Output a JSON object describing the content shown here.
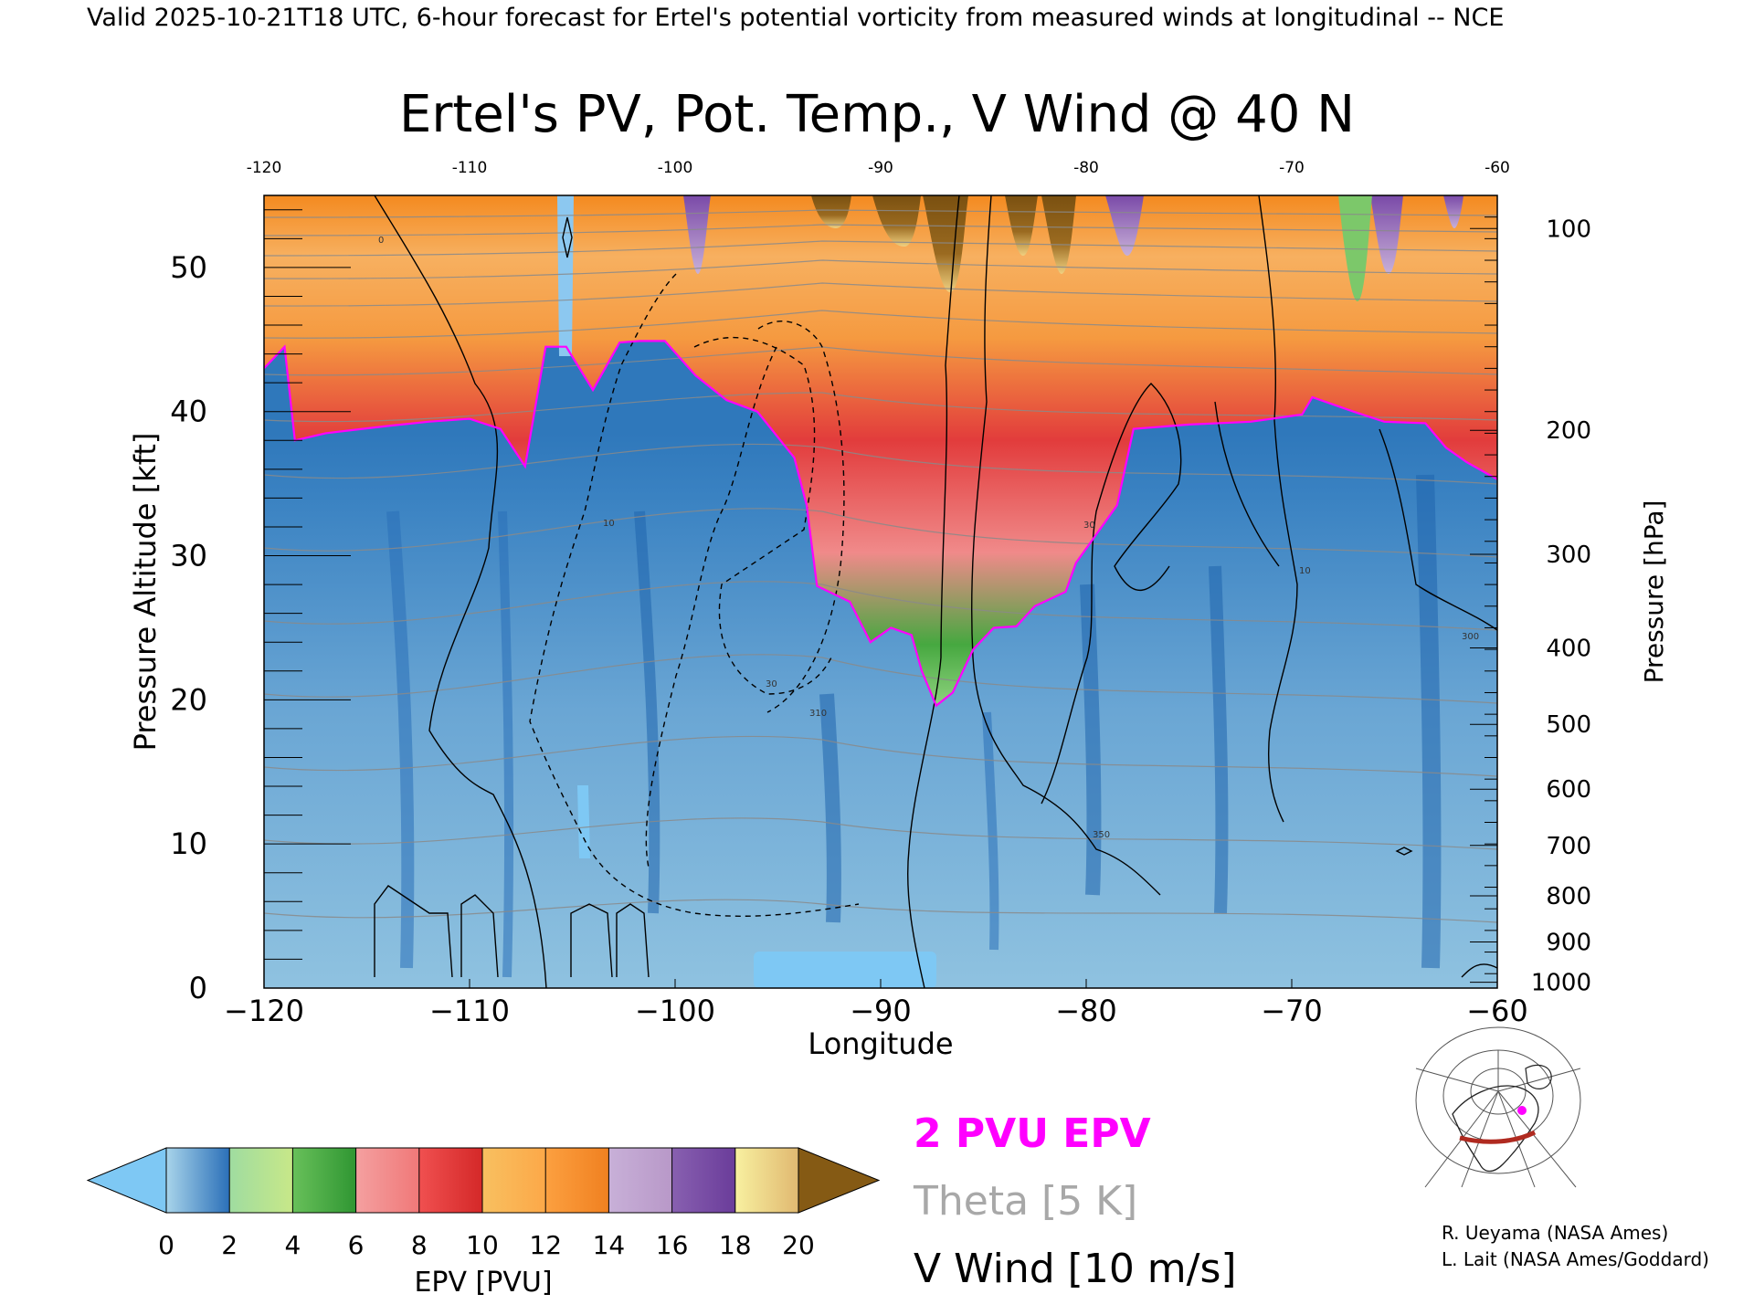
{
  "header": {
    "valid_line": "Valid 2025-10-21T18 UTC, 6-hour forecast for Ertel's potential vorticity from measured winds at longitudinal -- NCE"
  },
  "chart_data": {
    "type": "heatmap",
    "title": "Ertel's PV, Pot. Temp., V Wind @ 40 N",
    "xlabel": "Longitude",
    "ylabel_left": "Pressure Altitude [kft]",
    "ylabel_right": "Pressure [hPa]",
    "xlim": [
      -120,
      -60
    ],
    "ylim_kft": [
      0,
      55
    ],
    "x_ticks_bottom": [
      "−120",
      "−110",
      "−100",
      "−90",
      "−80",
      "−70",
      "−60"
    ],
    "x_ticks_top": [
      "-120",
      "-110",
      "-100",
      "-90",
      "-80",
      "-70",
      "-60"
    ],
    "y_ticks_left": [
      {
        "value": 0,
        "label": "0"
      },
      {
        "value": 10,
        "label": "10"
      },
      {
        "value": 20,
        "label": "20"
      },
      {
        "value": 30,
        "label": "30"
      },
      {
        "value": 40,
        "label": "40"
      },
      {
        "value": 50,
        "label": "50"
      }
    ],
    "y_ticks_right": [
      {
        "kft": 52.7,
        "label": "100"
      },
      {
        "kft": 38.7,
        "label": "200"
      },
      {
        "kft": 30.1,
        "label": "300"
      },
      {
        "kft": 23.6,
        "label": "400"
      },
      {
        "kft": 18.3,
        "label": "500"
      },
      {
        "kft": 13.8,
        "label": "600"
      },
      {
        "kft": 9.9,
        "label": "700"
      },
      {
        "kft": 6.4,
        "label": "800"
      },
      {
        "kft": 3.2,
        "label": "900"
      },
      {
        "kft": 0.4,
        "label": "1000"
      }
    ],
    "pv_2pvu_contour": [
      [
        -120,
        43
      ],
      [
        -119,
        44.5
      ],
      [
        -118.5,
        38
      ],
      [
        -117,
        38.5
      ],
      [
        -114,
        39
      ],
      [
        -112,
        39.3
      ],
      [
        -110,
        39.5
      ],
      [
        -108.5,
        38.8
      ],
      [
        -107.3,
        36.2
      ],
      [
        -106.3,
        44.5
      ],
      [
        -105.3,
        44.5
      ],
      [
        -104,
        41.5
      ],
      [
        -102.7,
        44.8
      ],
      [
        -101.7,
        44.9
      ],
      [
        -100.5,
        44.9
      ],
      [
        -99,
        42.5
      ],
      [
        -97.5,
        40.8
      ],
      [
        -96,
        40
      ],
      [
        -94.2,
        36.8
      ],
      [
        -93.6,
        33.5
      ],
      [
        -93.1,
        27.9
      ],
      [
        -91.5,
        26.8
      ],
      [
        -90.5,
        24
      ],
      [
        -89.5,
        25
      ],
      [
        -88.5,
        24.5
      ],
      [
        -88,
        22
      ],
      [
        -87.3,
        19.6
      ],
      [
        -86.5,
        20.5
      ],
      [
        -85.5,
        23.5
      ],
      [
        -84.5,
        25
      ],
      [
        -83.4,
        25.1
      ],
      [
        -82.5,
        26.5
      ],
      [
        -81,
        27.5
      ],
      [
        -80.5,
        29.5
      ],
      [
        -79.5,
        31.5
      ],
      [
        -78.5,
        33.5
      ],
      [
        -77.7,
        38.8
      ],
      [
        -75,
        39.1
      ],
      [
        -72,
        39.3
      ],
      [
        -69.5,
        39.8
      ],
      [
        -69,
        41
      ],
      [
        -67,
        40
      ],
      [
        -65.5,
        39.3
      ],
      [
        -63.5,
        39.2
      ],
      [
        -62.5,
        37.5
      ],
      [
        -61.5,
        36.5
      ],
      [
        -60,
        35.3
      ]
    ],
    "pv_2pvu_label": "2 PVU EPV",
    "theta_label": "Theta [5 K]",
    "vwind_label": "V Wind [10 m/s]",
    "colorbar": {
      "label": "EPV [PVU]",
      "ticks": [
        "0",
        "2",
        "4",
        "6",
        "8",
        "10",
        "12",
        "14",
        "16",
        "18",
        "20"
      ],
      "under_color": "#7ec8f4",
      "over_color": "#855a14",
      "bands": [
        [
          "#a8d4ea",
          "#2a6fb8"
        ],
        [
          "#9fdca0",
          "#c8e888"
        ],
        [
          "#68c05a",
          "#2f9632"
        ],
        [
          "#f4a0a0",
          "#f07878"
        ],
        [
          "#f05050",
          "#d42828"
        ],
        [
          "#f8c060",
          "#fca848"
        ],
        [
          "#fca040",
          "#f08020"
        ],
        [
          "#c8b0d8",
          "#b898c8"
        ],
        [
          "#8860b0",
          "#6a3c9a"
        ],
        [
          "#f8f0a0",
          "#e0b870"
        ],
        [
          "#a07030",
          "#7a5414"
        ]
      ]
    },
    "credits": [
      "R. Ueyama (NASA Ames)",
      "L. Lait (NASA Ames/Goddard)"
    ],
    "contour_labels": [
      "0",
      "10",
      "30",
      "310",
      "350",
      "300",
      "10",
      "30"
    ],
    "grid": false
  }
}
